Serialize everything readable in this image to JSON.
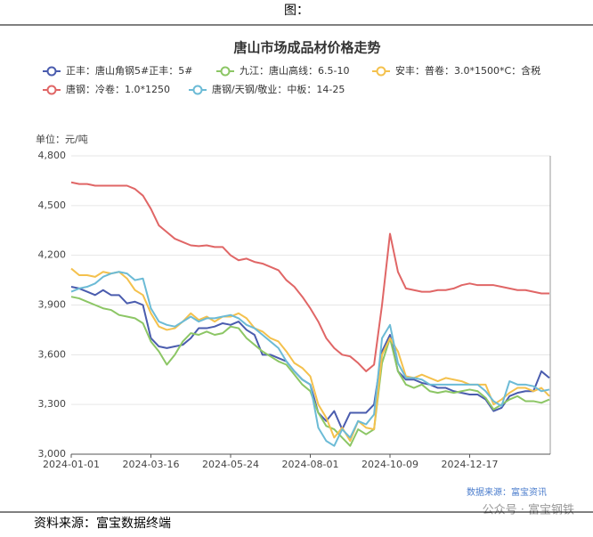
{
  "header": "图：",
  "footer": "资料来源：富宝数据终端",
  "chart_data": {
    "type": "line",
    "title": "唐山市场成品材价格走势",
    "y_label": "单位：元/吨",
    "source_note": "数据来源：富宝资讯",
    "watermark": "公众号 · 富宝钢铁",
    "grid": true,
    "ylim": [
      3000,
      4800
    ],
    "yticks": [
      {
        "value": 3000,
        "label": "3,000"
      },
      {
        "value": 3300,
        "label": "3,300"
      },
      {
        "value": 3600,
        "label": "3,600"
      },
      {
        "value": 3900,
        "label": "3,900"
      },
      {
        "value": 4200,
        "label": "4,200"
      },
      {
        "value": 4500,
        "label": "4,500"
      },
      {
        "value": 4800,
        "label": "4,800"
      }
    ],
    "categories": [
      "2024-01-01",
      null,
      null,
      null,
      null,
      null,
      null,
      null,
      null,
      null,
      "2024-03-16",
      null,
      null,
      null,
      null,
      null,
      null,
      null,
      null,
      null,
      "2024-05-24",
      null,
      null,
      null,
      null,
      null,
      null,
      null,
      null,
      null,
      "2024-08-01",
      null,
      null,
      null,
      null,
      null,
      null,
      null,
      null,
      null,
      "2024-10-09",
      null,
      null,
      null,
      null,
      null,
      null,
      null,
      null,
      null,
      "2024-12-17",
      null,
      null,
      null,
      null,
      null,
      null,
      null,
      null,
      null,
      null
    ],
    "series": [
      {
        "name": "正丰：唐山角钢5#正丰：5#",
        "color": "#4a5cae",
        "values": [
          4010,
          4000,
          3980,
          3960,
          3990,
          3960,
          3960,
          3910,
          3920,
          3900,
          3700,
          3650,
          3640,
          3650,
          3660,
          3700,
          3760,
          3760,
          3770,
          3790,
          3780,
          3800,
          3750,
          3720,
          3600,
          3600,
          3580,
          3560,
          3500,
          3450,
          3420,
          3250,
          3200,
          3260,
          3150,
          3250,
          3250,
          3250,
          3300,
          3620,
          3720,
          3500,
          3450,
          3450,
          3430,
          3420,
          3400,
          3400,
          3380,
          3370,
          3360,
          3360,
          3330,
          3260,
          3280,
          3350,
          3370,
          3380,
          3380,
          3500,
          3460
        ]
      },
      {
        "name": "九江：唐山高线：6.5-10",
        "color": "#8cc665",
        "values": [
          3950,
          3940,
          3920,
          3900,
          3880,
          3870,
          3840,
          3830,
          3820,
          3790,
          3680,
          3620,
          3540,
          3600,
          3680,
          3730,
          3720,
          3740,
          3720,
          3730,
          3770,
          3760,
          3700,
          3660,
          3620,
          3590,
          3560,
          3540,
          3480,
          3420,
          3380,
          3250,
          3170,
          3150,
          3100,
          3050,
          3150,
          3120,
          3150,
          3550,
          3700,
          3500,
          3420,
          3400,
          3420,
          3380,
          3370,
          3380,
          3370,
          3380,
          3390,
          3380,
          3340,
          3270,
          3300,
          3330,
          3350,
          3320,
          3320,
          3310,
          3330
        ]
      },
      {
        "name": "安丰：普卷：3.0*1500*C：含税",
        "color": "#f4c14d",
        "values": [
          4120,
          4080,
          4080,
          4070,
          4100,
          4090,
          4100,
          4060,
          3990,
          3960,
          3850,
          3770,
          3750,
          3760,
          3800,
          3850,
          3810,
          3830,
          3800,
          3830,
          3830,
          3850,
          3820,
          3760,
          3740,
          3700,
          3680,
          3620,
          3550,
          3520,
          3470,
          3300,
          3220,
          3100,
          3160,
          3080,
          3200,
          3160,
          3150,
          3600,
          3700,
          3620,
          3470,
          3460,
          3480,
          3460,
          3440,
          3460,
          3450,
          3440,
          3420,
          3420,
          3420,
          3300,
          3330,
          3370,
          3400,
          3400,
          3380,
          3400,
          3350
        ]
      },
      {
        "name": "唐钢：冷卷：1.0*1250",
        "color": "#e06666",
        "values": [
          4640,
          4630,
          4630,
          4620,
          4620,
          4620,
          4620,
          4620,
          4600,
          4560,
          4480,
          4380,
          4340,
          4300,
          4280,
          4260,
          4255,
          4260,
          4250,
          4250,
          4200,
          4170,
          4180,
          4160,
          4150,
          4130,
          4110,
          4050,
          4010,
          3950,
          3880,
          3800,
          3700,
          3640,
          3600,
          3590,
          3550,
          3500,
          3540,
          3900,
          4330,
          4100,
          4000,
          3990,
          3980,
          3980,
          3990,
          3990,
          4000,
          4020,
          4030,
          4020,
          4020,
          4020,
          4010,
          4000,
          3990,
          3990,
          3980,
          3970,
          3970
        ]
      },
      {
        "name": "唐钢/天钢/敬业：中板：14-25",
        "color": "#6cbbd6",
        "values": [
          3980,
          4000,
          4010,
          4030,
          4070,
          4090,
          4100,
          4090,
          4050,
          4060,
          3880,
          3800,
          3780,
          3770,
          3800,
          3830,
          3800,
          3820,
          3820,
          3830,
          3840,
          3820,
          3780,
          3760,
          3720,
          3680,
          3640,
          3560,
          3500,
          3450,
          3420,
          3160,
          3080,
          3050,
          3150,
          3100,
          3200,
          3180,
          3240,
          3700,
          3780,
          3550,
          3460,
          3460,
          3450,
          3420,
          3420,
          3420,
          3420,
          3420,
          3420,
          3420,
          3380,
          3320,
          3290,
          3440,
          3420,
          3420,
          3410,
          3380,
          3390
        ]
      }
    ]
  }
}
